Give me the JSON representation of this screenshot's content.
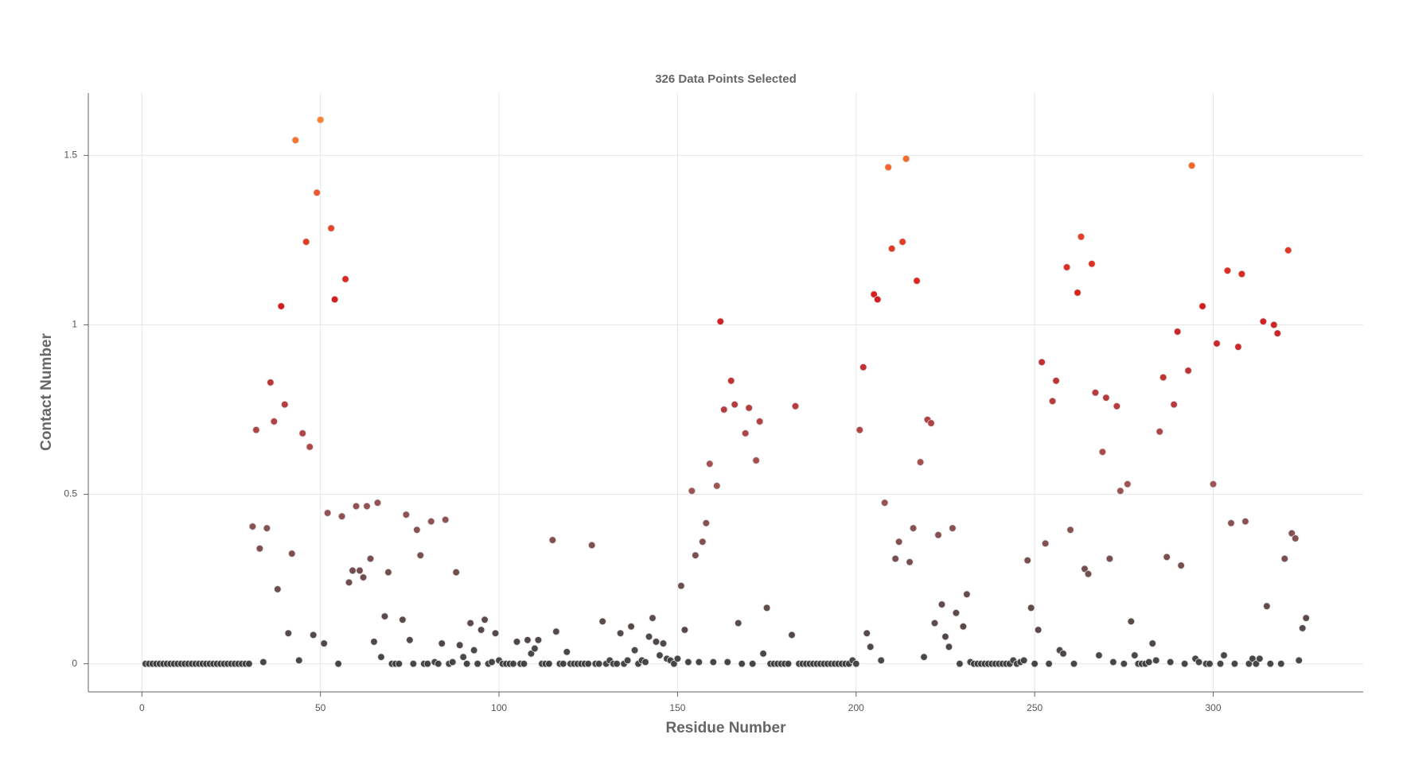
{
  "chart_data": {
    "type": "scatter",
    "title": "326 Data Points Selected",
    "x_label": "Residue Number",
    "y_label": "Contact Number",
    "x": [
      1,
      2,
      3,
      4,
      5,
      6,
      7,
      8,
      9,
      10,
      11,
      12,
      13,
      14,
      15,
      16,
      17,
      18,
      19,
      20,
      21,
      22,
      23,
      24,
      25,
      26,
      27,
      28,
      29,
      30,
      31,
      32,
      33,
      34,
      35,
      36,
      37,
      38,
      39,
      40,
      41,
      42,
      43,
      44,
      45,
      46,
      47,
      48,
      49,
      50,
      51,
      52,
      53,
      54,
      55,
      56,
      57,
      58,
      59,
      60,
      61,
      62,
      63,
      64,
      65,
      66,
      67,
      68,
      69,
      70,
      71,
      72,
      73,
      74,
      75,
      76,
      77,
      78,
      79,
      80,
      81,
      82,
      83,
      84,
      85,
      86,
      87,
      88,
      89,
      90,
      91,
      92,
      93,
      94,
      95,
      96,
      97,
      98,
      99,
      100,
      101,
      102,
      103,
      104,
      105,
      106,
      107,
      108,
      109,
      110,
      111,
      112,
      113,
      114,
      115,
      116,
      117,
      118,
      119,
      120,
      121,
      122,
      123,
      124,
      125,
      126,
      127,
      128,
      129,
      130,
      131,
      132,
      133,
      134,
      135,
      136,
      137,
      138,
      139,
      140,
      141,
      142,
      143,
      144,
      145,
      146,
      147,
      148,
      149,
      150,
      151,
      152,
      153,
      154,
      155,
      156,
      157,
      158,
      159,
      160,
      161,
      162,
      163,
      164,
      165,
      166,
      167,
      168,
      169,
      170,
      171,
      172,
      173,
      174,
      175,
      176,
      177,
      178,
      179,
      180,
      181,
      182,
      183,
      184,
      185,
      186,
      187,
      188,
      189,
      190,
      191,
      192,
      193,
      194,
      195,
      196,
      197,
      198,
      199,
      200,
      201,
      202,
      203,
      204,
      205,
      206,
      207,
      208,
      209,
      210,
      211,
      212,
      213,
      214,
      215,
      216,
      217,
      218,
      219,
      220,
      221,
      222,
      223,
      224,
      225,
      226,
      227,
      228,
      229,
      230,
      231,
      232,
      233,
      234,
      235,
      236,
      237,
      238,
      239,
      240,
      241,
      242,
      243,
      244,
      245,
      246,
      247,
      248,
      249,
      250,
      251,
      252,
      253,
      254,
      255,
      256,
      257,
      258,
      259,
      260,
      261,
      262,
      263,
      264,
      265,
      266,
      267,
      268,
      269,
      270,
      271,
      272,
      273,
      274,
      275,
      276,
      277,
      278,
      279,
      280,
      281,
      282,
      283,
      284,
      285,
      286,
      287,
      288,
      289,
      290,
      291,
      292,
      293,
      294,
      295,
      296,
      297,
      298,
      299,
      300,
      301,
      302,
      303,
      304,
      305,
      306,
      307,
      308,
      309,
      310,
      311,
      312,
      313,
      314,
      315,
      316,
      317,
      318,
      319,
      320,
      321,
      322,
      323,
      324,
      325,
      326
    ],
    "values": [
      0,
      0,
      0,
      0,
      0,
      0,
      0,
      0,
      0,
      0,
      0,
      0,
      0,
      0,
      0,
      0,
      0,
      0,
      0,
      0,
      0,
      0,
      0,
      0,
      0,
      0,
      0,
      0,
      0,
      0,
      0.405,
      0.69,
      0.34,
      0.005,
      0.4,
      0.83,
      0.715,
      0.22,
      1.055,
      0.765,
      0.09,
      0.325,
      1.545,
      0.01,
      0.68,
      1.245,
      0.64,
      0.085,
      1.39,
      1.605,
      0.06,
      0.445,
      1.285,
      1.075,
      0,
      0.435,
      1.135,
      0.24,
      0.275,
      0.465,
      0.275,
      0.255,
      0.465,
      0.31,
      0.065,
      0.475,
      0.02,
      0.14,
      0.27,
      0,
      0,
      0,
      0.13,
      0.44,
      0.07,
      0,
      0.395,
      0.32,
      0,
      0,
      0.42,
      0.005,
      0,
      0.06,
      0.425,
      0,
      0.005,
      0.27,
      0.055,
      0.02,
      0,
      0.12,
      0.04,
      0,
      0.1,
      0.13,
      0,
      0.005,
      0.09,
      0.01,
      0,
      0,
      0,
      0,
      0.065,
      0,
      0,
      0.07,
      0.03,
      0.045,
      0.07,
      0,
      0,
      0,
      0.365,
      0.095,
      0,
      0,
      0.035,
      0,
      0,
      0,
      0,
      0,
      0,
      0.35,
      0,
      0,
      0.125,
      0,
      0.01,
      0,
      0,
      0.09,
      0,
      0.01,
      0.11,
      0.04,
      0,
      0.01,
      0.005,
      0.08,
      0.135,
      0.065,
      0.025,
      0.06,
      0.015,
      0.01,
      0,
      0.015,
      0.23,
      0.1,
      0.005,
      0.51,
      0.32,
      0.005,
      0.36,
      0.415,
      0.59,
      0.005,
      0.525,
      1.01,
      0.75,
      0.005,
      0.835,
      0.765,
      0.12,
      0,
      0.68,
      0.755,
      0,
      0.6,
      0.715,
      0.03,
      0.165,
      0,
      0,
      0,
      0,
      0,
      0,
      0.085,
      0.76,
      0,
      0,
      0,
      0,
      0,
      0,
      0,
      0,
      0,
      0,
      0,
      0,
      0,
      0,
      0,
      0.01,
      0,
      0.69,
      0.875,
      0.09,
      0.05,
      1.09,
      1.075,
      0.01,
      0.475,
      1.465,
      1.225,
      0.31,
      0.36,
      1.245,
      1.49,
      0.3,
      0.4,
      1.13,
      0.595,
      0.02,
      0.72,
      0.71,
      0.12,
      0.38,
      0.175,
      0.08,
      0.05,
      0.4,
      0.15,
      0,
      0.11,
      0.205,
      0.005,
      0,
      0,
      0,
      0,
      0,
      0,
      0,
      0,
      0,
      0,
      0,
      0.01,
      0,
      0.005,
      0.01,
      0.305,
      0.165,
      0,
      0.1,
      0.89,
      0.355,
      0,
      0.775,
      0.835,
      0.04,
      0.03,
      1.17,
      0.395,
      0,
      1.095,
      1.26,
      0.28,
      0.265,
      1.18,
      0.8,
      0.025,
      0.625,
      0.785,
      0.31,
      0.005,
      0.76,
      0.51,
      0,
      0.53,
      0.125,
      0.025,
      0,
      0,
      0,
      0.005,
      0.06,
      0.01,
      0.685,
      0.845,
      0.315,
      0.005,
      0.765,
      0.98,
      0.29,
      0,
      0.865,
      1.47,
      0.015,
      0.005,
      1.055,
      0,
      0,
      0.53,
      0.945,
      0,
      0.025,
      1.16,
      0.415,
      0,
      0.935,
      1.15,
      0.42,
      0,
      0.015,
      0,
      0.015,
      1.01,
      0.17,
      0,
      1.0,
      0.975,
      0,
      0.31,
      1.22,
      0.385,
      0.37,
      0.01,
      0.105,
      0.135
    ],
    "colormap": [
      "#3c3c3c",
      "#9a4c4c",
      "#d40f12",
      "#ff7a22"
    ],
    "xlim": [
      -15,
      342
    ],
    "ylim": [
      -0.083,
      1.684
    ],
    "xticks": [
      0,
      50,
      100,
      150,
      200,
      250,
      300
    ],
    "yticks": [
      0,
      0.5,
      1,
      1.5
    ],
    "grid": true
  }
}
